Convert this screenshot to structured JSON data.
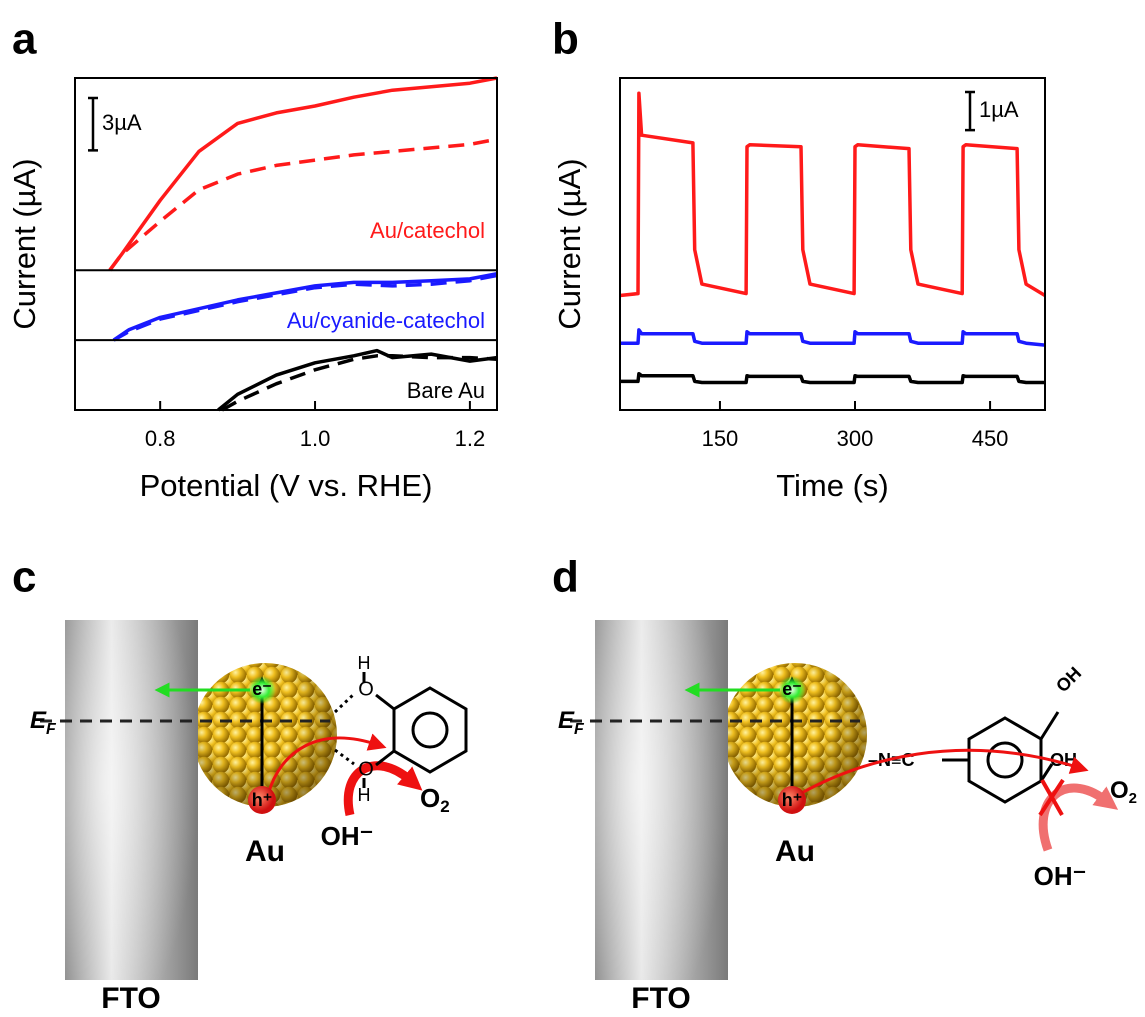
{
  "chart_data": [
    {
      "type": "line",
      "panel_label": "a",
      "xlabel": "Potential (V vs. RHE)",
      "ylabel": "Current (µA)",
      "xlim": [
        0.69,
        1.235
      ],
      "xticks": [
        0.8,
        {
          "value": 1,
          "label": "1.0"
        },
        1.2
      ],
      "scale_bar": {
        "value": 3,
        "label": "3µA"
      },
      "subplots": [
        {
          "label": "Au/catechol",
          "ylim": [
            0,
            11
          ],
          "series": [
            {
              "color": "#ff1a1a",
              "dash": false,
              "x": [
                0.735,
                0.75,
                0.8,
                0.85,
                0.9,
                0.95,
                1.0,
                1.05,
                1.1,
                1.15,
                1.2,
                1.235
              ],
              "values": [
                0,
                0.9,
                4.0,
                6.8,
                8.4,
                9.0,
                9.4,
                9.9,
                10.3,
                10.5,
                10.7,
                11.0
              ]
            },
            {
              "color": "#ff1a1a",
              "dash": true,
              "x": [
                0.735,
                0.75,
                0.8,
                0.85,
                0.9,
                0.95,
                1.0,
                1.05,
                1.1,
                1.15,
                1.2,
                1.235
              ],
              "values": [
                0,
                0.9,
                2.8,
                4.6,
                5.5,
                6.0,
                6.3,
                6.6,
                6.8,
                7.0,
                7.2,
                7.5
              ]
            }
          ]
        },
        {
          "label": "Au/cyanide-catechol",
          "ylim": [
            0,
            4
          ],
          "series": [
            {
              "color": "#1a1aff",
              "dash": false,
              "x": [
                0.74,
                0.76,
                0.8,
                0.85,
                0.9,
                0.95,
                1.0,
                1.05,
                1.1,
                1.15,
                1.2,
                1.235
              ],
              "values": [
                0,
                0.6,
                1.3,
                1.8,
                2.3,
                2.7,
                3.1,
                3.3,
                3.3,
                3.4,
                3.5,
                3.8
              ]
            },
            {
              "color": "#1a1aff",
              "dash": true,
              "x": [
                0.74,
                0.76,
                0.8,
                0.85,
                0.9,
                0.95,
                1.0,
                1.05,
                1.1,
                1.15,
                1.2,
                1.235
              ],
              "values": [
                0,
                0.5,
                1.2,
                1.7,
                2.2,
                2.6,
                3.0,
                3.2,
                3.1,
                3.2,
                3.4,
                3.7
              ]
            }
          ]
        },
        {
          "label": "Bare Au",
          "ylim": [
            0,
            4
          ],
          "series": [
            {
              "color": "#000000",
              "dash": false,
              "x": [
                0.875,
                0.9,
                0.95,
                1.0,
                1.05,
                1.08,
                1.1,
                1.15,
                1.2,
                1.235
              ],
              "values": [
                0,
                0.9,
                2.0,
                2.7,
                3.1,
                3.4,
                3.0,
                3.2,
                2.8,
                3.0
              ]
            },
            {
              "color": "#000000",
              "dash": true,
              "x": [
                0.88,
                0.9,
                0.95,
                1.0,
                1.05,
                1.08,
                1.1,
                1.15,
                1.2,
                1.235
              ],
              "values": [
                0,
                0.5,
                1.5,
                2.3,
                2.9,
                3.1,
                3.1,
                3.0,
                3.0,
                2.9
              ]
            }
          ]
        }
      ]
    },
    {
      "type": "line",
      "panel_label": "b",
      "xlabel": "Time (s)",
      "ylabel": "Current (µA)",
      "xlim": [
        39,
        511
      ],
      "xticks": [
        150,
        300,
        450
      ],
      "ylim": [
        0,
        8.7
      ],
      "scale_bar": {
        "value": 1,
        "label": "1µA"
      },
      "x": [
        39,
        59,
        60,
        63,
        120,
        122,
        130,
        179,
        180,
        183,
        240,
        242,
        250,
        299,
        300,
        303,
        360,
        362,
        370,
        419,
        420,
        423,
        480,
        482,
        490,
        511
      ],
      "series": [
        {
          "color": "#ff1a1a",
          "values": [
            3.0,
            3.05,
            8.3,
            7.2,
            7.0,
            4.2,
            3.3,
            3.05,
            6.9,
            6.95,
            6.9,
            4.2,
            3.3,
            3.05,
            6.9,
            6.95,
            6.85,
            4.2,
            3.3,
            3.05,
            6.9,
            6.95,
            6.85,
            4.2,
            3.3,
            3.0
          ]
        },
        {
          "color": "#1a1aff",
          "values": [
            1.75,
            1.75,
            2.1,
            2.0,
            2.0,
            1.8,
            1.75,
            1.75,
            2.05,
            2.0,
            2.0,
            1.8,
            1.75,
            1.75,
            2.05,
            2.0,
            2.0,
            1.8,
            1.75,
            1.75,
            2.05,
            2.0,
            2.0,
            1.8,
            1.75,
            1.7
          ]
        },
        {
          "color": "#000000",
          "values": [
            0.75,
            0.75,
            0.95,
            0.9,
            0.9,
            0.75,
            0.72,
            0.72,
            0.9,
            0.88,
            0.88,
            0.75,
            0.72,
            0.72,
            0.9,
            0.88,
            0.88,
            0.75,
            0.72,
            0.72,
            0.9,
            0.88,
            0.88,
            0.75,
            0.72,
            0.72
          ]
        }
      ]
    }
  ],
  "diagrams": [
    {
      "panel_label": "c",
      "fto": "FTO",
      "au": "Au",
      "electron": "e⁻",
      "hole": "h⁺",
      "fermi": {
        "main": "E",
        "sub": "F"
      },
      "hydroxide": "OH⁻",
      "oxygen": {
        "main": "O",
        "sub": "2"
      },
      "o_top": "O",
      "h_top": "H",
      "o_bottom": "O",
      "h_bottom": "H"
    },
    {
      "panel_label": "d",
      "fto": "FTO",
      "au": "Au",
      "electron": "e⁻",
      "hole": "h⁺",
      "fermi": {
        "main": "E",
        "sub": "F"
      },
      "hydroxide": "OH⁻",
      "oxygen": {
        "main": "O",
        "sub": "2"
      },
      "linker": "–N≡C",
      "oh_top": "OH",
      "oh_right": "OH"
    }
  ]
}
